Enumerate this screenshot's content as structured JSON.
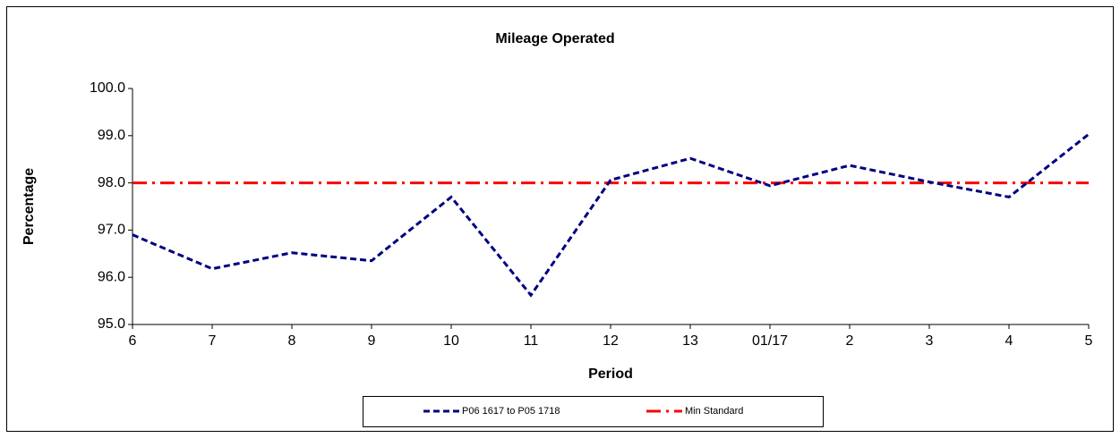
{
  "chart_data": {
    "type": "line",
    "title": "Mileage Operated",
    "x_label": "Period",
    "y_label": "Percentage",
    "categories": [
      "6",
      "7",
      "8",
      "9",
      "10",
      "11",
      "12",
      "13",
      "01/17",
      "2",
      "3",
      "4",
      "5"
    ],
    "series": [
      {
        "name": "P06 1617 to P05 1718",
        "color": "#000080",
        "style": "dashed",
        "values": [
          96.9,
          96.18,
          96.52,
          96.35,
          97.7,
          95.62,
          98.06,
          98.52,
          97.94,
          98.37,
          98.02,
          97.7,
          99.03
        ]
      },
      {
        "name": "Min Standard",
        "color": "#ff0000",
        "style": "dashdot",
        "values": [
          98,
          98,
          98,
          98,
          98,
          98,
          98,
          98,
          98,
          98,
          98,
          98,
          98
        ]
      }
    ],
    "ylim": [
      95,
      100
    ],
    "yticks": [
      {
        "value": 95,
        "label": "95.0"
      },
      {
        "value": 96,
        "label": "96.0"
      },
      {
        "value": 97,
        "label": "97.0"
      },
      {
        "value": 98,
        "label": "98.0"
      },
      {
        "value": 99,
        "label": "99.0"
      },
      {
        "value": 100,
        "label": "100.0"
      }
    ],
    "grid": false,
    "legend": "bottom"
  }
}
